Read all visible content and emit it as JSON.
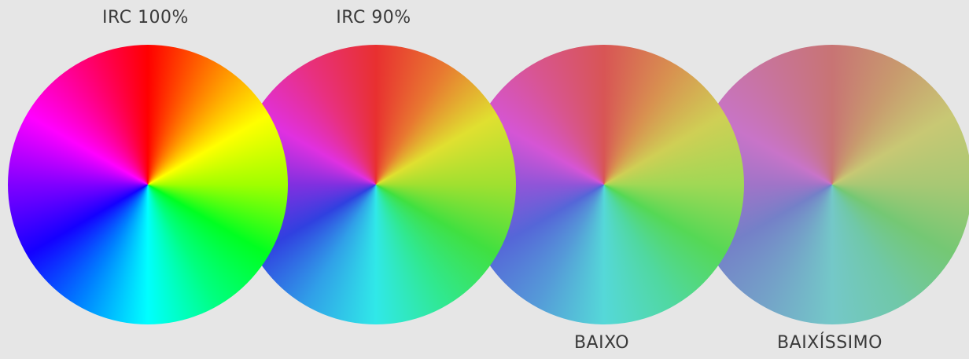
{
  "labels": {
    "wheel1": "IRC 100%",
    "wheel2": "IRC 90%",
    "wheel3": "BAIXO",
    "wheel4": "BAIXÍSSIMO"
  },
  "wheels": [
    {
      "id": "wheel1",
      "colors": [
        "#ff0000",
        "#ff8000",
        "#ffff00",
        "#a0ff00",
        "#00ff20",
        "#00ff80",
        "#00ffff",
        "#0080ff",
        "#1400ff",
        "#8000ff",
        "#ff00ff",
        "#ff0080",
        "#ff0000"
      ]
    },
    {
      "id": "wheel2",
      "colors": [
        "#e83030",
        "#e87830",
        "#e0e030",
        "#a0e030",
        "#40e040",
        "#30e890",
        "#30e8e8",
        "#30a0e8",
        "#3040e0",
        "#8030e0",
        "#e030e0",
        "#e83080",
        "#e83030"
      ]
    },
    {
      "id": "wheel3",
      "colors": [
        "#d85555",
        "#d89050",
        "#cfcf55",
        "#a0d855",
        "#55d855",
        "#50d8a0",
        "#55d8d8",
        "#5599d8",
        "#5566d8",
        "#9055d8",
        "#d555d5",
        "#d8558f",
        "#d85555"
      ]
    },
    {
      "id": "wheel4",
      "colors": [
        "#c87474",
        "#c89a6e",
        "#c8c874",
        "#a8c874",
        "#74c874",
        "#70c8a8",
        "#74c8c8",
        "#74a2c8",
        "#7480c8",
        "#a074c8",
        "#c874c8",
        "#c8749c",
        "#c87474"
      ]
    }
  ]
}
